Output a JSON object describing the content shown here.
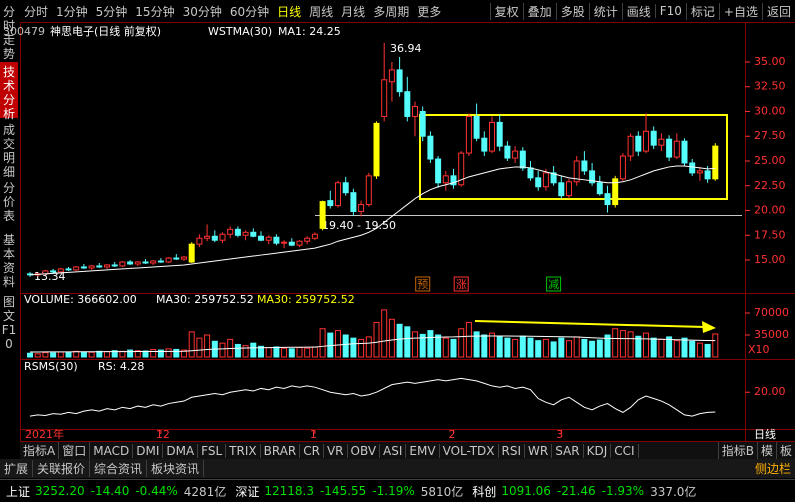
{
  "toolbar": {
    "left": [
      "分时",
      "1分钟",
      "5分钟",
      "15分钟",
      "30分钟",
      "60分钟",
      "日线",
      "周线",
      "月线",
      "多周期",
      "更多"
    ],
    "right": [
      "复权",
      "叠加",
      "多股",
      "统计",
      "画线",
      "F10",
      "标记",
      "+自选",
      "返回"
    ],
    "active_index": 6
  },
  "side_tabs": [
    "分时走势",
    "技术分析",
    "成交明细",
    "分价表",
    "基本资料",
    "图文F10"
  ],
  "side_active_index": 1,
  "chart_data": {
    "type": "candlestick",
    "stock_code": "300479",
    "stock_name": "神思电子(日线 前复权)",
    "indicator": "WSTMA(30)",
    "ma_label": "MA1: 24.25",
    "candles": [
      [
        13.6,
        13.8,
        13.3,
        13.5
      ],
      [
        13.5,
        13.7,
        13.34,
        13.6
      ],
      [
        13.6,
        14.0,
        13.5,
        13.9
      ],
      [
        13.9,
        14.1,
        13.7,
        13.8
      ],
      [
        13.8,
        14.2,
        13.7,
        14.1
      ],
      [
        14.1,
        14.3,
        13.9,
        14.0
      ],
      [
        14.0,
        14.4,
        13.9,
        14.3
      ],
      [
        14.3,
        14.6,
        14.1,
        14.2
      ],
      [
        14.2,
        14.5,
        14.0,
        14.4
      ],
      [
        14.4,
        14.7,
        14.2,
        14.3
      ],
      [
        14.3,
        14.6,
        14.1,
        14.5
      ],
      [
        14.5,
        14.8,
        14.3,
        14.4
      ],
      [
        14.4,
        14.9,
        14.3,
        14.8
      ],
      [
        14.8,
        15.0,
        14.5,
        14.6
      ],
      [
        14.6,
        14.9,
        14.4,
        14.8
      ],
      [
        14.8,
        15.1,
        14.6,
        14.7
      ],
      [
        14.7,
        15.0,
        14.5,
        14.9
      ],
      [
        14.9,
        15.2,
        14.7,
        14.8
      ],
      [
        14.8,
        15.3,
        14.7,
        15.2
      ],
      [
        15.2,
        15.6,
        15.0,
        15.1
      ],
      [
        15.1,
        15.4,
        14.9,
        15.3
      ],
      [
        14.8,
        16.8,
        14.7,
        16.6
      ],
      [
        16.6,
        17.6,
        16.3,
        17.2
      ],
      [
        17.2,
        18.6,
        16.9,
        17.4
      ],
      [
        17.4,
        18.0,
        16.8,
        17.0
      ],
      [
        17.0,
        17.8,
        16.7,
        17.6
      ],
      [
        17.6,
        18.4,
        17.2,
        18.1
      ],
      [
        18.1,
        18.4,
        17.3,
        17.5
      ],
      [
        17.5,
        18.0,
        17.0,
        17.8
      ],
      [
        17.8,
        18.2,
        17.3,
        17.4
      ],
      [
        17.4,
        17.9,
        16.9,
        17.0
      ],
      [
        17.0,
        17.5,
        16.6,
        17.3
      ],
      [
        17.3,
        17.6,
        16.5,
        16.7
      ],
      [
        16.7,
        17.0,
        16.2,
        16.8
      ],
      [
        16.8,
        17.2,
        16.4,
        16.5
      ],
      [
        16.5,
        17.0,
        16.3,
        16.9
      ],
      [
        16.9,
        17.4,
        16.6,
        17.2
      ],
      [
        17.2,
        17.8,
        17.0,
        17.6
      ],
      [
        18.2,
        21.0,
        18.0,
        20.9
      ],
      [
        21.0,
        22.0,
        20.2,
        20.5
      ],
      [
        20.5,
        23.0,
        20.3,
        22.8
      ],
      [
        22.8,
        23.4,
        21.5,
        21.8
      ],
      [
        21.8,
        22.2,
        19.5,
        19.9
      ],
      [
        19.9,
        21.0,
        19.4,
        20.6
      ],
      [
        20.6,
        23.8,
        20.4,
        23.5
      ],
      [
        23.5,
        29.0,
        23.2,
        28.8
      ],
      [
        29.5,
        36.94,
        29.0,
        33.2
      ],
      [
        33.0,
        35.0,
        31.0,
        34.2
      ],
      [
        34.2,
        35.5,
        31.5,
        32.0
      ],
      [
        32.0,
        33.5,
        29.0,
        29.5
      ],
      [
        29.5,
        31.0,
        27.5,
        30.5
      ],
      [
        30.0,
        30.5,
        27.0,
        27.5
      ],
      [
        27.5,
        28.0,
        24.8,
        25.2
      ],
      [
        25.2,
        25.5,
        22.3,
        22.8
      ],
      [
        22.8,
        24.0,
        22.0,
        23.5
      ],
      [
        23.5,
        24.2,
        22.2,
        22.6
      ],
      [
        22.6,
        26.0,
        22.4,
        25.8
      ],
      [
        25.8,
        29.8,
        25.5,
        29.5
      ],
      [
        29.5,
        30.8,
        27.0,
        27.3
      ],
      [
        27.3,
        28.0,
        25.5,
        26.0
      ],
      [
        26.0,
        29.5,
        25.8,
        28.9
      ],
      [
        28.9,
        29.7,
        26.0,
        26.5
      ],
      [
        26.5,
        27.0,
        25.0,
        25.3
      ],
      [
        25.3,
        26.5,
        24.8,
        26.0
      ],
      [
        26.0,
        26.4,
        24.0,
        24.3
      ],
      [
        24.3,
        25.0,
        23.0,
        23.3
      ],
      [
        23.3,
        24.0,
        22.0,
        22.4
      ],
      [
        22.4,
        24.2,
        22.0,
        23.8
      ],
      [
        23.8,
        24.5,
        22.5,
        22.8
      ],
      [
        22.8,
        23.5,
        21.2,
        21.5
      ],
      [
        21.5,
        23.2,
        21.2,
        22.9
      ],
      [
        22.9,
        25.5,
        22.5,
        25.0
      ],
      [
        25.0,
        26.0,
        23.6,
        24.0
      ],
      [
        24.0,
        24.8,
        22.5,
        22.8
      ],
      [
        22.8,
        23.5,
        21.5,
        21.7
      ],
      [
        21.7,
        22.5,
        19.8,
        20.6
      ],
      [
        20.6,
        23.5,
        20.3,
        23.2
      ],
      [
        23.2,
        25.8,
        23.0,
        25.5
      ],
      [
        25.5,
        27.8,
        25.0,
        27.5
      ],
      [
        27.5,
        28.0,
        25.5,
        26.0
      ],
      [
        26.0,
        29.8,
        25.8,
        28.0
      ],
      [
        28.0,
        28.5,
        26.2,
        26.6
      ],
      [
        26.6,
        27.8,
        26.0,
        27.2
      ],
      [
        27.2,
        27.6,
        25.0,
        25.4
      ],
      [
        25.4,
        27.8,
        25.2,
        27.0
      ],
      [
        27.0,
        27.3,
        24.5,
        24.8
      ],
      [
        24.8,
        25.2,
        23.5,
        23.8
      ],
      [
        23.8,
        24.4,
        23.0,
        24.0
      ],
      [
        24.0,
        24.5,
        22.8,
        23.2
      ],
      [
        23.2,
        26.8,
        23.0,
        26.5
      ]
    ],
    "ma": [
      13.5,
      13.55,
      13.6,
      13.65,
      13.7,
      13.75,
      13.8,
      13.85,
      13.9,
      13.95,
      14.0,
      14.05,
      14.1,
      14.15,
      14.2,
      14.25,
      14.3,
      14.35,
      14.4,
      14.45,
      14.5,
      14.6,
      14.7,
      14.8,
      14.9,
      15.0,
      15.1,
      15.2,
      15.3,
      15.4,
      15.5,
      15.6,
      15.7,
      15.8,
      15.9,
      16.0,
      16.1,
      16.2,
      16.4,
      16.6,
      16.9,
      17.1,
      17.3,
      17.5,
      17.8,
      18.2,
      18.8,
      19.4,
      20.0,
      20.6,
      21.2,
      21.7,
      22.1,
      22.4,
      22.6,
      22.8,
      23.1,
      23.4,
      23.6,
      23.8,
      24.0,
      24.2,
      24.3,
      24.4,
      24.4,
      24.3,
      24.1,
      23.9,
      23.7,
      23.5,
      23.3,
      23.2,
      23.1,
      23.0,
      22.9,
      22.8,
      22.8,
      22.9,
      23.1,
      23.4,
      23.7,
      24.0,
      24.2,
      24.4,
      24.5,
      24.5,
      24.4,
      24.3,
      24.2,
      24.25
    ],
    "ma_color": "#ffffff",
    "up_color": "#ff3232",
    "down_color": "#54fcfc",
    "highlight_color": "#ffff00",
    "highlighted": [
      21,
      38,
      45,
      76,
      89
    ],
    "ylim": [
      11.77,
      38.23
    ],
    "yticks": [
      {
        "value": 15,
        "label": "15.00"
      },
      {
        "value": 17.5,
        "label": "17.50"
      },
      {
        "value": 20,
        "label": "20.00"
      },
      {
        "value": 22.5,
        "label": "22.50"
      },
      {
        "value": 25,
        "label": "25.00"
      },
      {
        "value": 27.5,
        "label": "27.50"
      },
      {
        "value": 30,
        "label": "30.00"
      },
      {
        "value": 32.5,
        "label": "32.50"
      },
      {
        "value": 35,
        "label": "35.00"
      }
    ],
    "annotations": {
      "peak": "36.94",
      "range": "19.40 - 19.50",
      "low": "13.34"
    },
    "signals": [
      {
        "index": 51,
        "label": "预",
        "color": "#c86400"
      },
      {
        "index": 56,
        "label": "涨",
        "color": "#ff3232"
      },
      {
        "index": 68,
        "label": "减",
        "color": "#00c800"
      }
    ],
    "categories": [
      "2021年",
      null,
      null,
      null,
      null,
      null,
      null,
      null,
      null,
      null,
      null,
      null,
      null,
      null,
      null,
      null,
      null,
      "12",
      null,
      null,
      null,
      null,
      null,
      null,
      null,
      null,
      null,
      null,
      null,
      null,
      null,
      null,
      null,
      null,
      null,
      null,
      null,
      "1",
      null,
      null,
      null,
      null,
      null,
      null,
      null,
      null,
      null,
      null,
      null,
      null,
      null,
      null,
      null,
      null,
      null,
      "2",
      null,
      null,
      null,
      null,
      null,
      null,
      null,
      null,
      null,
      null,
      null,
      null,
      null,
      "3",
      null,
      null,
      null,
      null,
      null,
      null,
      null,
      null,
      null,
      null,
      null,
      null,
      null,
      null,
      null,
      null,
      null,
      null,
      null,
      null
    ],
    "period_label": "日线",
    "volume": {
      "label": "VOLUME: 366602.00",
      "ma_label": "MA30: 259752.52",
      "ma_label2": "MA30: 259752.52",
      "unit": "X10",
      "values": [
        60000,
        50000,
        70000,
        65000,
        80000,
        70000,
        90000,
        80000,
        75000,
        90000,
        85000,
        100000,
        90000,
        110000,
        100000,
        95000,
        120000,
        110000,
        130000,
        120000,
        110000,
        400000,
        300000,
        350000,
        250000,
        220000,
        280000,
        200000,
        180000,
        220000,
        170000,
        150000,
        160000,
        140000,
        130000,
        150000,
        140000,
        160000,
        450000,
        380000,
        420000,
        350000,
        300000,
        280000,
        320000,
        550000,
        750000,
        600000,
        520000,
        480000,
        400000,
        360000,
        420000,
        350000,
        300000,
        280000,
        450000,
        550000,
        400000,
        350000,
        380000,
        320000,
        300000,
        280000,
        330000,
        300000,
        260000,
        280000,
        240000,
        300000,
        260000,
        320000,
        280000,
        250000,
        270000,
        350000,
        450000,
        420000,
        400000,
        330000,
        380000,
        300000,
        280000,
        320000,
        260000,
        300000,
        250000,
        220000,
        200000,
        366602
      ],
      "ma": [
        80000,
        80000,
        81000,
        81000,
        82000,
        82000,
        83000,
        83000,
        84000,
        84000,
        85000,
        85000,
        86000,
        86000,
        87000,
        87000,
        88000,
        88000,
        89000,
        90000,
        91000,
        100000,
        110000,
        120000,
        125000,
        130000,
        135000,
        140000,
        143000,
        146000,
        148000,
        150000,
        152000,
        154000,
        155000,
        156000,
        157000,
        158000,
        170000,
        180000,
        190000,
        200000,
        210000,
        215000,
        220000,
        235000,
        255000,
        270000,
        285000,
        295000,
        300000,
        305000,
        310000,
        315000,
        318000,
        320000,
        325000,
        330000,
        332000,
        334000,
        335000,
        335000,
        334000,
        333000,
        332000,
        330000,
        328000,
        326000,
        324000,
        322000,
        320000,
        318000,
        312000,
        306000,
        300000,
        296000,
        294000,
        293000,
        292000,
        290000,
        288000,
        285000,
        282000,
        278000,
        275000,
        271000,
        268000,
        265000,
        262000,
        259752.52
      ],
      "ma_color": "#ffffff",
      "ylim": [
        0,
        938600
      ],
      "yticks": [
        {
          "value": 350000,
          "label": "35000"
        },
        {
          "value": 700000,
          "label": "70000"
        }
      ]
    },
    "rsms": {
      "label": "RSMS(30)",
      "rs_label": "RS: 4.28",
      "color": "#ffffff",
      "values": [
        1,
        2,
        1.5,
        3,
        2.5,
        4,
        3,
        5,
        6,
        5,
        7,
        6,
        8,
        7,
        9,
        8,
        10,
        9,
        11,
        12,
        13,
        16,
        17,
        18,
        19,
        18,
        20,
        21,
        22,
        21,
        23,
        22,
        24,
        23,
        25,
        24,
        25,
        24,
        22,
        20,
        19,
        18,
        19,
        17,
        18,
        20,
        23,
        26,
        27,
        28,
        27,
        28,
        29,
        30,
        29,
        30,
        31,
        30,
        29,
        27,
        25,
        24,
        25,
        23,
        24,
        22,
        15,
        12,
        10,
        14,
        16,
        12,
        8,
        6,
        9,
        11,
        7,
        4,
        8,
        14,
        17,
        15,
        13,
        10,
        6,
        2,
        1,
        3,
        4,
        4.28
      ],
      "ylim": [
        -10,
        44
      ],
      "yticks": [
        {
          "value": 20,
          "label": "20.00"
        }
      ]
    }
  },
  "indicator_tabs": [
    "指标A",
    "窗口",
    "MACD",
    "DMI",
    "DMA",
    "FSL",
    "TRIX",
    "BRAR",
    "CR",
    "VR",
    "OBV",
    "ASI",
    "EMV",
    "VOL-TDX",
    "RSI",
    "WR",
    "SAR",
    "KDJ",
    "CCI"
  ],
  "indicator_right": [
    "指标B",
    "模",
    "板"
  ],
  "status_tabs": [
    "扩展",
    "关联报价",
    "综合资讯",
    "板块资讯"
  ],
  "sidebar": "侧边栏",
  "market": [
    {
      "name": "上证",
      "price": "3252.20",
      "change": "-14.40",
      "pct": "-0.44%",
      "amount": "4281亿"
    },
    {
      "name": "深证",
      "price": "12118.3",
      "change": "-145.55",
      "pct": "-1.19%",
      "amount": "5810亿"
    },
    {
      "name": "科创",
      "price": "1091.06",
      "change": "-21.46",
      "pct": "-1.93%",
      "amount": "337.0亿"
    }
  ]
}
